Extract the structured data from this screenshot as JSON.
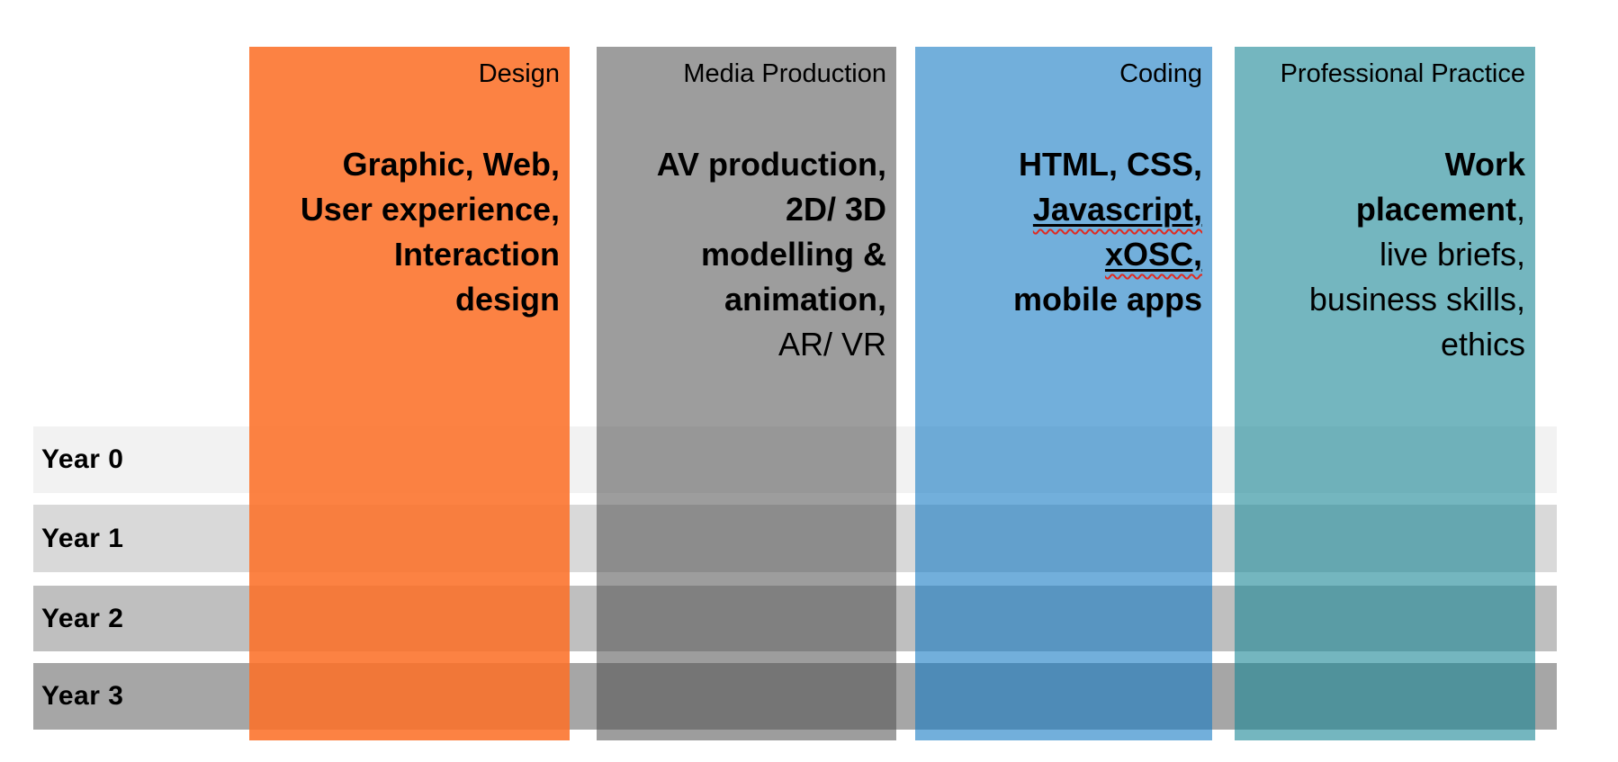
{
  "columns": [
    {
      "header": "Design",
      "fill": "rgba(252,113,41,0.88)",
      "appears_as": "#fc8243",
      "lines": [
        "Graphic, Web,",
        "User experience,",
        "Interaction",
        "design"
      ]
    },
    {
      "header": "Media Production",
      "fill": "rgba(77,77,77,0.55)",
      "appears_as": "#9f9f9f",
      "lines": [
        "AV production,",
        "2D/ 3D",
        "modelling &",
        "animation,",
        "AR/ VR"
      ]
    },
    {
      "header": "Coding",
      "fill": "rgba(20,122,195,0.6)",
      "appears_as": "#72afdb",
      "lines": [
        "HTML, CSS,",
        "Javascript,",
        "xOSC,",
        "mobile apps"
      ]
    },
    {
      "header": "Professional Practice",
      "fill": "rgba(23,133,148,0.6)",
      "appears_as": "#74b6bf",
      "lines": [
        "Work",
        "placement",
        ",",
        "live briefs,",
        "business skills,",
        "ethics"
      ]
    }
  ],
  "rows": [
    {
      "label": "Year 0",
      "fill": "#f2f2f2"
    },
    {
      "label": "Year 1",
      "fill": "#d9d9d9"
    },
    {
      "label": "Year 2",
      "fill": "#bfbfbf"
    },
    {
      "label": "Year 3",
      "fill": "#a6a6a6"
    }
  ],
  "spellcheck_underline_color": "#e02b20"
}
